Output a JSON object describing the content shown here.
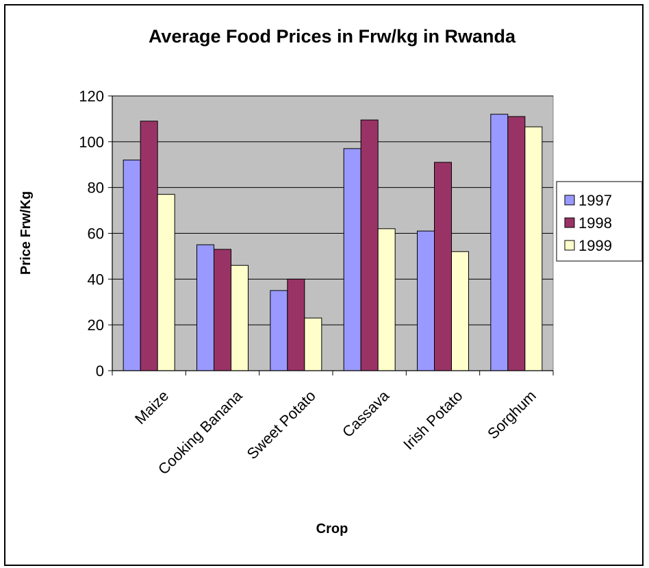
{
  "chart_data": {
    "type": "bar",
    "title": "Average Food Prices in Frw/kg in Rwanda",
    "xlabel": "Crop",
    "ylabel": "Price Frw/Kg",
    "ylim": [
      0,
      120
    ],
    "ytick_step": 20,
    "grid": true,
    "legend_position": "right",
    "plot_background": "#c0c0c0",
    "categories": [
      "Maize",
      "Cooking Banana",
      "Sweet Potato",
      "Cassava",
      "Irish Potato",
      "Sorghum"
    ],
    "series": [
      {
        "name": "1997",
        "color": "#9999ff",
        "values": [
          92,
          55,
          35,
          97,
          61,
          112
        ]
      },
      {
        "name": "1998",
        "color": "#993366",
        "values": [
          109,
          53,
          40,
          109.5,
          91,
          111
        ]
      },
      {
        "name": "1999",
        "color": "#ffffcc",
        "values": [
          77,
          46,
          23,
          62,
          52,
          106.5
        ]
      }
    ]
  }
}
